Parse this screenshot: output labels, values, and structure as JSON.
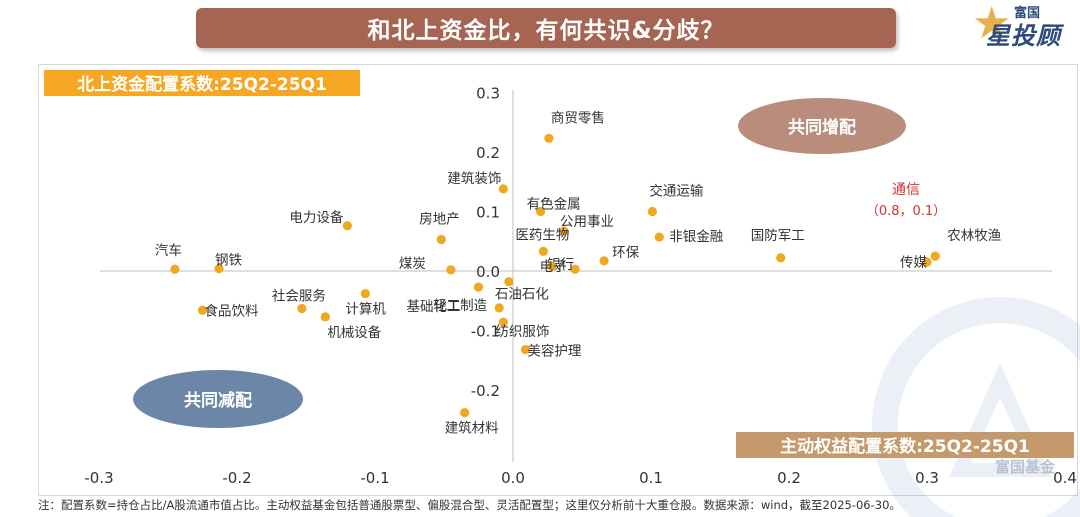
{
  "title": "和北上资金比，有何共识&分歧？",
  "logo": {
    "brand_top": "富国",
    "brand_main": "星投顾",
    "watermark": "富国基金"
  },
  "footnote": "注：配置系数=持仓占比/A股流通市值占比。主动权益基金包括普通股票型、偏股混合型、灵活配置型；这里仅分析前十大重仓股。数据来源：wind，截至2025-06-30。",
  "colors": {
    "title_bg": "#a66552",
    "point": "#f0a820",
    "y_label_bg": "#f5a623",
    "x_label_bg": "#c49a6c",
    "bubble_pos": "#b98c7c",
    "bubble_neg": "#6b86a6",
    "highlight": "#d33232"
  },
  "chart_data": {
    "type": "scatter",
    "xlabel": "主动权益配置系数:25Q2-25Q1",
    "ylabel": "北上资金配置系数:25Q2-25Q1",
    "xlim": [
      -0.3,
      0.4
    ],
    "ylim": [
      -0.3,
      0.3
    ],
    "x_ticks": [
      "-0.3",
      "-0.2",
      "-0.1",
      "0.0",
      "0.1",
      "0.2",
      "0.3",
      "0.4"
    ],
    "y_ticks": [
      "0.3",
      "0.2",
      "0.1",
      "0.0",
      "-0.1",
      "-0.2"
    ],
    "quadrant_labels": {
      "top_right": "共同增配",
      "bottom_left": "共同减配"
    },
    "annotation": {
      "label": "通信",
      "value": "（0.8，0.1）"
    },
    "points": [
      {
        "label": "商贸零售",
        "x": 0.026,
        "y": 0.223
      },
      {
        "label": "建筑装饰",
        "x": -0.007,
        "y": 0.138
      },
      {
        "label": "有色金属",
        "x": 0.02,
        "y": 0.1
      },
      {
        "label": "公用事业",
        "x": 0.037,
        "y": 0.067
      },
      {
        "label": "交通运输",
        "x": 0.101,
        "y": 0.1
      },
      {
        "label": "非银金融",
        "x": 0.106,
        "y": 0.057
      },
      {
        "label": "国防军工",
        "x": 0.194,
        "y": 0.022
      },
      {
        "label": "农林牧渔",
        "x": 0.306,
        "y": 0.025
      },
      {
        "label": "传媒",
        "x": 0.3,
        "y": 0.015
      },
      {
        "label": "电力设备",
        "x": -0.12,
        "y": 0.076
      },
      {
        "label": "房地产",
        "x": -0.052,
        "y": 0.053
      },
      {
        "label": "医药生物",
        "x": 0.022,
        "y": 0.033
      },
      {
        "label": "环保",
        "x": 0.066,
        "y": 0.017
      },
      {
        "label": "银行",
        "x": 0.045,
        "y": 0.003
      },
      {
        "label": "电子",
        "x": 0.028,
        "y": 0.008
      },
      {
        "label": "汽车",
        "x": -0.245,
        "y": 0.003
      },
      {
        "label": "钢铁",
        "x": -0.213,
        "y": 0.004
      },
      {
        "label": "煤炭",
        "x": -0.045,
        "y": 0.002
      },
      {
        "label": "石油石化",
        "x": -0.003,
        "y": -0.018
      },
      {
        "label": "基础化工",
        "x": -0.025,
        "y": -0.027
      },
      {
        "label": "轻工制造",
        "x": -0.01,
        "y": -0.062
      },
      {
        "label": "纺织服饰",
        "x": -0.007,
        "y": -0.086
      },
      {
        "label": "美容护理",
        "x": 0.009,
        "y": -0.132
      },
      {
        "label": "社会服务",
        "x": -0.153,
        "y": -0.063
      },
      {
        "label": "计算机",
        "x": -0.107,
        "y": -0.038
      },
      {
        "label": "食品饮料",
        "x": -0.225,
        "y": -0.066
      },
      {
        "label": "机械设备",
        "x": -0.136,
        "y": -0.077
      },
      {
        "label": "建筑材料",
        "x": -0.035,
        "y": -0.238
      }
    ]
  }
}
